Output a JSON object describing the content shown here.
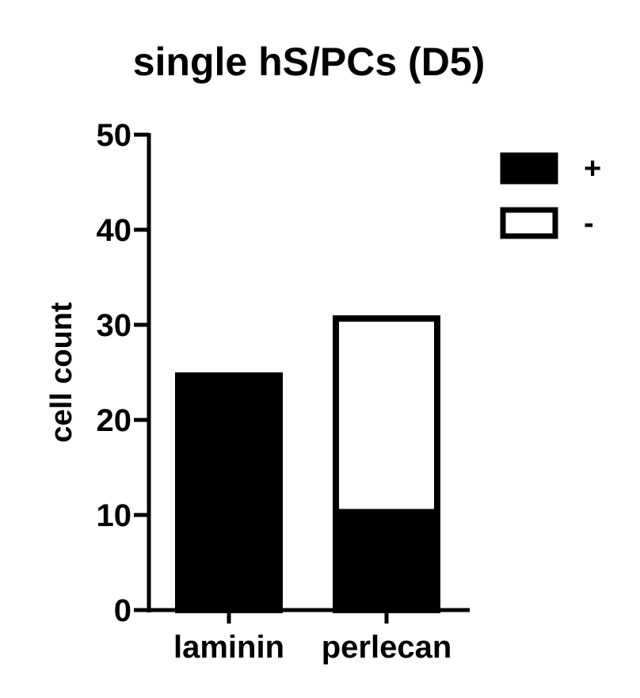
{
  "chart_data": {
    "type": "bar",
    "stacked": true,
    "title": "single hS/PCs (D5)",
    "xlabel": "",
    "ylabel": "cell count",
    "categories": [
      "laminin",
      "perlecan"
    ],
    "series": [
      {
        "name": "+",
        "values": [
          25,
          10.3
        ],
        "fill": "#000000"
      },
      {
        "name": "-",
        "values": [
          0,
          20.7
        ],
        "fill": "#ffffff"
      }
    ],
    "ylim": [
      0,
      50
    ],
    "yticks": [
      "0",
      "10",
      "20",
      "30",
      "40",
      "50"
    ],
    "grid": false,
    "legend": "top-right"
  }
}
